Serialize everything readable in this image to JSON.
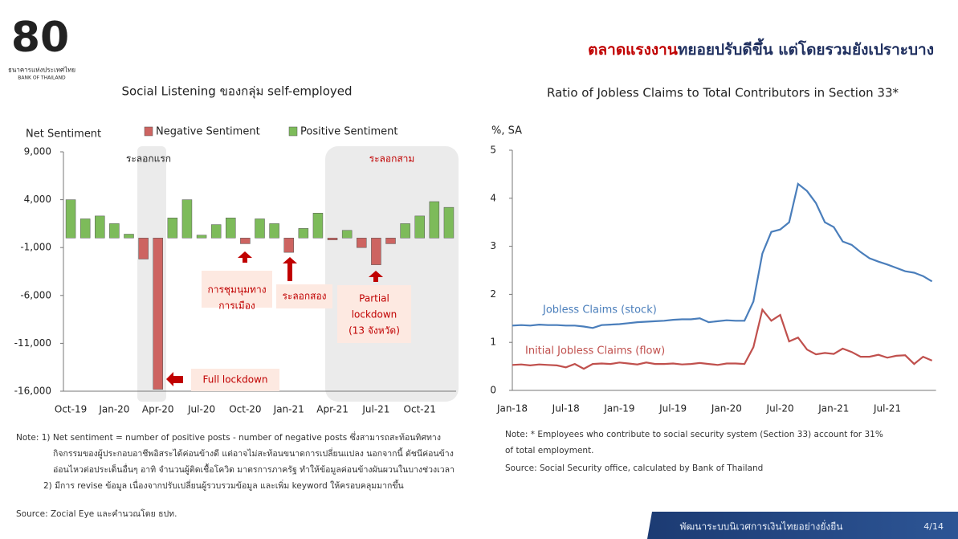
{
  "header": {
    "logo_name": "ธนาคารแห่งประเทศไทย",
    "logo_name_en": "BANK OF THAILAND",
    "title_highlight": "ตลาดแรงงาน",
    "title_rest": "ทยอยปรับดีขึ้น แต่โดยรวมยังเปราะบาง"
  },
  "chart_data": [
    {
      "type": "bar",
      "title": "Social Listening ของกลุ่ม self-employed",
      "y_label": "Net Sentiment",
      "categories": [
        "Oct-19",
        null,
        null,
        "Jan-20",
        null,
        null,
        "Apr-20",
        null,
        null,
        "Jul-20",
        null,
        null,
        "Oct-20",
        null,
        null,
        "Jan-21",
        null,
        null,
        "Apr-21",
        null,
        null,
        "Jul-21",
        null,
        null,
        "Oct-21",
        null,
        null
      ],
      "series": [
        {
          "name": "Negative Sentiment",
          "color": "#cd6461",
          "values": [
            null,
            null,
            null,
            null,
            null,
            -2200,
            -15800,
            null,
            null,
            null,
            null,
            null,
            -600,
            null,
            null,
            -1500,
            null,
            null,
            -200,
            null,
            -1000,
            -2800,
            -600,
            null,
            null,
            null,
            null
          ]
        },
        {
          "name": "Positive Sentiment",
          "color": "#7dbb5a",
          "values": [
            4000,
            2000,
            2300,
            1500,
            400,
            null,
            null,
            2100,
            4000,
            300,
            1400,
            2100,
            null,
            2000,
            1500,
            null,
            1000,
            2600,
            null,
            800,
            null,
            null,
            null,
            1500,
            2300,
            3800,
            3200
          ]
        }
      ],
      "ylim": [
        -16000,
        9000
      ],
      "yticks": [
        {
          "value": 9000,
          "label": "9,000"
        },
        {
          "value": 4000,
          "label": "4,000"
        },
        {
          "value": -1000,
          "label": "-1,000"
        },
        {
          "value": -6000,
          "label": "-6,000"
        },
        {
          "value": -11000,
          "label": "-11,000"
        },
        {
          "value": -16000,
          "label": "-16,000"
        }
      ],
      "legend": "top",
      "annotations": [
        {
          "lines": [
            "ระลอกแรก"
          ]
        },
        {
          "lines": [
            "ระลอกสาม"
          ]
        },
        {
          "lines": [
            "การชุมนุมทาง",
            "การเมือง"
          ]
        },
        {
          "lines": [
            "ระลอกสอง"
          ]
        },
        {
          "lines": [
            "Partial",
            "lockdown",
            "(13 จังหวัด)"
          ]
        },
        {
          "lines": [
            "Full lockdown"
          ]
        }
      ]
    },
    {
      "type": "line",
      "title": "Ratio of Jobless Claims to Total Contributors in Section 33*",
      "y_label": "%, SA",
      "categories": [
        "Jan-18",
        null,
        null,
        null,
        null,
        null,
        "Jul-18",
        null,
        null,
        null,
        null,
        null,
        "Jan-19",
        null,
        null,
        null,
        null,
        null,
        "Jul-19",
        null,
        null,
        null,
        null,
        null,
        "Jan-20",
        null,
        null,
        null,
        null,
        null,
        "Jul-20",
        null,
        null,
        null,
        null,
        null,
        "Jan-21",
        null,
        null,
        null,
        null,
        null,
        "Jul-21",
        null,
        null,
        null,
        null,
        null
      ],
      "series": [
        {
          "name": "Jobless Claims (stock)",
          "color": "#4a7ebb",
          "values": [
            1.35,
            1.36,
            1.35,
            1.37,
            1.36,
            1.36,
            1.35,
            1.35,
            1.33,
            1.3,
            1.36,
            1.37,
            1.38,
            1.4,
            1.42,
            1.43,
            1.44,
            1.45,
            1.47,
            1.48,
            1.48,
            1.5,
            1.42,
            1.44,
            1.46,
            1.45,
            1.45,
            1.85,
            2.85,
            3.3,
            3.35,
            3.5,
            4.3,
            4.15,
            3.9,
            3.5,
            3.4,
            3.1,
            3.03,
            2.88,
            2.75,
            2.68,
            2.62,
            2.55,
            2.48,
            2.45,
            2.38,
            2.27
          ]
        },
        {
          "name": "Initial Jobless Claims (flow)",
          "color": "#c0504d",
          "values": [
            0.53,
            0.54,
            0.52,
            0.54,
            0.53,
            0.52,
            0.48,
            0.55,
            0.45,
            0.55,
            0.56,
            0.55,
            0.58,
            0.56,
            0.54,
            0.58,
            0.55,
            0.55,
            0.56,
            0.54,
            0.55,
            0.57,
            0.55,
            0.53,
            0.56,
            0.56,
            0.55,
            0.9,
            1.68,
            1.45,
            1.57,
            1.02,
            1.1,
            0.85,
            0.75,
            0.78,
            0.76,
            0.87,
            0.8,
            0.7,
            0.7,
            0.74,
            0.68,
            0.72,
            0.73,
            0.55,
            0.7,
            0.62
          ]
        }
      ],
      "ylim": [
        0,
        5
      ],
      "yticks": [
        0,
        1,
        2,
        3,
        4,
        5
      ]
    }
  ],
  "notes_left": [
    "Note: 1) Net sentiment = number of positive posts - number of negative posts ซึ่งสามารถสะท้อนทิศทาง",
    "กิจกรรมของผู้ประกอบอาชีพอิสระได้ค่อนข้างดี แต่อาจไม่สะท้อนขนาดการเปลี่ยนแปลง นอกจากนี้ ดัชนีค่อนข้าง",
    "อ่อนไหวต่อประเด็นอื่นๆ อาทิ จำนวนผู้ติดเชื้อโควิด มาตรการภาครัฐ ทำให้ข้อมูลค่อนข้างผันผวนในบางช่วงเวลา",
    "2) มีการ revise ข้อมูล เนื่องจากปรับเปลี่ยนผู้รวบรวมข้อมูล และเพิ่ม keyword ให้ครอบคลุมมากขึ้น"
  ],
  "source_left": "Source: Zocial Eye และคำนวณโดย ธปท.",
  "notes_right": [
    "Note: * Employees who contribute to social security system (Section 33) account for 31%",
    "of total employment."
  ],
  "source_right": "Source: Social Security office, calculated by Bank of Thailand",
  "footer": {
    "slogan": "พัฒนาระบบนิเวศการเงินไทยอย่างยั่งยืน",
    "page": "4/14"
  }
}
